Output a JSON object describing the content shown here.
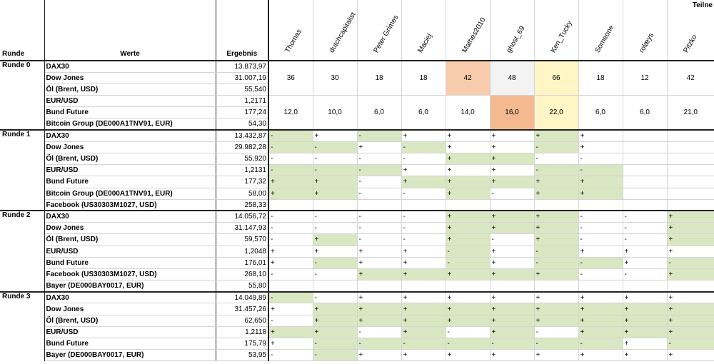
{
  "headers": {
    "runde": "Runde",
    "werte": "Werte",
    "ergebnis": "Ergebnis",
    "teilnehmer": "Teilne"
  },
  "participants": [
    "Thomas",
    "dutchcapitalist",
    "Peter Grimes",
    "Maciej",
    "Mathes2010",
    "ghost_69",
    "Ken_Tucky",
    "Someone",
    "rolæys",
    "Pitzko"
  ],
  "runde0": {
    "label": "Runde 0",
    "assets": [
      "DAX30",
      "Dow Jones",
      "Öl (Brent, USD)",
      "EUR/USD",
      "Bund Future",
      "Bitcoin Group (DE000A1TNV91, EUR)"
    ],
    "ergebnis": [
      "13.873,97",
      "31.007,19",
      "55,540",
      "1,2171",
      "177,24",
      "54,30"
    ],
    "totals": [
      "36",
      "30",
      "18",
      "18",
      "42",
      "48",
      "66",
      "18",
      "12",
      "42"
    ],
    "scores": [
      "12,0",
      "10,0",
      "6,0",
      "6,0",
      "14,0",
      "16,0",
      "22,0",
      "6,0",
      "6,0",
      "21,0"
    ],
    "highlight_colors": {
      "totals": [
        "",
        "",
        "",
        "",
        "#f8cbad",
        "#f3f3f3",
        "#fff5c5",
        "",
        "",
        ""
      ],
      "scores": [
        "",
        "",
        "",
        "",
        "",
        "#f4b98f",
        "#fff5c5",
        "",
        "",
        ""
      ]
    }
  },
  "runden": [
    {
      "label": "Runde 1",
      "rows": [
        {
          "asset": "DAX30",
          "ergebnis": "13.432,87",
          "marks": [
            "-",
            "+",
            "-",
            "+",
            "+",
            "+",
            "+",
            "+",
            "",
            ""
          ],
          "correct": [
            1,
            0,
            1,
            0,
            0,
            0,
            1,
            0,
            0,
            0
          ]
        },
        {
          "asset": "Dow Jones",
          "ergebnis": "29.982,28",
          "marks": [
            "-",
            "-",
            "+",
            "-",
            "+",
            "+",
            "-",
            "+",
            "",
            ""
          ],
          "correct": [
            1,
            1,
            0,
            1,
            0,
            0,
            1,
            0,
            0,
            0
          ]
        },
        {
          "asset": "Öl (Brent, USD)",
          "ergebnis": "55,920",
          "marks": [
            "-",
            "-",
            "-",
            "-",
            "+",
            "+",
            "-",
            "-",
            "",
            ""
          ],
          "correct": [
            0,
            0,
            0,
            0,
            1,
            1,
            0,
            0,
            0,
            0
          ]
        },
        {
          "asset": "EUR/USD",
          "ergebnis": "1,2131",
          "marks": [
            "-",
            "-",
            "-",
            "+",
            "+",
            "+",
            "-",
            "-",
            "",
            ""
          ],
          "correct": [
            1,
            1,
            1,
            0,
            0,
            0,
            1,
            1,
            0,
            0
          ]
        },
        {
          "asset": "Bund Future",
          "ergebnis": "177,32",
          "marks": [
            "+",
            "+",
            "-",
            "+",
            "+",
            "+",
            "+",
            "+",
            "",
            ""
          ],
          "correct": [
            1,
            1,
            0,
            1,
            1,
            1,
            1,
            1,
            0,
            0
          ]
        },
        {
          "asset": "Bitcoin Group (DE000A1TNV91, EUR)",
          "ergebnis": "58,00",
          "marks": [
            "+",
            "+",
            "-",
            "-",
            "+",
            "-",
            "+",
            "+",
            "",
            ""
          ],
          "correct": [
            1,
            1,
            0,
            0,
            1,
            0,
            1,
            1,
            0,
            0
          ]
        },
        {
          "asset": "Facebook (US30303M1027, USD)",
          "ergebnis": "258,33",
          "marks": [
            "",
            "",
            "",
            "",
            "",
            "",
            "",
            "",
            "",
            ""
          ],
          "correct": [
            0,
            0,
            0,
            0,
            0,
            0,
            0,
            0,
            0,
            0
          ]
        }
      ]
    },
    {
      "label": "Runde 2",
      "rows": [
        {
          "asset": "DAX30",
          "ergebnis": "14.056,72",
          "marks": [
            "-",
            "-",
            "-",
            "-",
            "+",
            "+",
            "+",
            "-",
            "-",
            "+"
          ],
          "correct": [
            0,
            0,
            0,
            0,
            1,
            1,
            1,
            0,
            0,
            1
          ]
        },
        {
          "asset": "Dow Jones",
          "ergebnis": "31.147,93",
          "marks": [
            "-",
            "-",
            "-",
            "-",
            "+",
            "+",
            "+",
            "-",
            "-",
            "+"
          ],
          "correct": [
            0,
            0,
            0,
            0,
            1,
            1,
            1,
            0,
            0,
            1
          ]
        },
        {
          "asset": "Öl (Brent, USD)",
          "ergebnis": "59,570",
          "marks": [
            "-",
            "+",
            "-",
            "-",
            "+",
            "-",
            "+",
            "-",
            "-",
            "+"
          ],
          "correct": [
            0,
            1,
            0,
            0,
            1,
            0,
            1,
            0,
            0,
            1
          ]
        },
        {
          "asset": "EUR/USD",
          "ergebnis": "1,2048",
          "marks": [
            "+",
            "+",
            "+",
            "+",
            "-",
            "+",
            "-",
            "+",
            "+",
            "+"
          ],
          "correct": [
            0,
            0,
            0,
            0,
            1,
            0,
            1,
            0,
            0,
            0
          ]
        },
        {
          "asset": "Bund Future",
          "ergebnis": "176,01",
          "marks": [
            "+",
            "-",
            "+",
            "+",
            "-",
            "+",
            "-",
            "-",
            "+",
            "-"
          ],
          "correct": [
            0,
            1,
            0,
            0,
            1,
            0,
            1,
            1,
            0,
            1
          ]
        },
        {
          "asset": "Facebook (US30303M1027, USD)",
          "ergebnis": "268,10",
          "marks": [
            "-",
            "-",
            "+",
            "+",
            "+",
            "+",
            "+",
            "-",
            "-",
            "+"
          ],
          "correct": [
            0,
            0,
            1,
            1,
            1,
            1,
            1,
            0,
            0,
            1
          ]
        },
        {
          "asset": "Bayer (DE000BAY0017, EUR)",
          "ergebnis": "55,80",
          "marks": [
            "",
            "",
            "",
            "",
            "",
            "",
            "",
            "",
            "",
            ""
          ],
          "correct": [
            0,
            0,
            0,
            0,
            0,
            0,
            0,
            0,
            0,
            0
          ]
        }
      ]
    },
    {
      "label": "Runde 3",
      "rows": [
        {
          "asset": "DAX30",
          "ergebnis": "14.049,89",
          "marks": [
            "-",
            "-",
            "+",
            "+",
            "+",
            "+",
            "+",
            "+",
            "+",
            "+"
          ],
          "correct": [
            1,
            0,
            0,
            0,
            0,
            0,
            0,
            0,
            0,
            0
          ]
        },
        {
          "asset": "Dow Jones",
          "ergebnis": "31.457,26",
          "marks": [
            "+",
            "+",
            "+",
            "+",
            "+",
            "+",
            "+",
            "+",
            "+",
            "+"
          ],
          "correct": [
            0,
            1,
            1,
            1,
            1,
            1,
            1,
            1,
            1,
            1
          ]
        },
        {
          "asset": "Öl (Brent, USD)",
          "ergebnis": "62,650",
          "marks": [
            "-",
            "+",
            "+",
            "+",
            "+",
            "+",
            "+",
            "+",
            "+",
            "+"
          ],
          "correct": [
            0,
            1,
            1,
            1,
            1,
            1,
            1,
            1,
            1,
            1
          ]
        },
        {
          "asset": "EUR/USD",
          "ergebnis": "1,2118",
          "marks": [
            "+",
            "+",
            "-",
            "+",
            "-",
            "+",
            "-",
            "+",
            "+",
            "+"
          ],
          "correct": [
            1,
            1,
            0,
            1,
            0,
            1,
            0,
            1,
            1,
            1
          ]
        },
        {
          "asset": "Bund Future",
          "ergebnis": "175,79",
          "marks": [
            "+",
            "-",
            "-",
            "-",
            "-",
            "-",
            "-",
            "-",
            "+",
            "-"
          ],
          "correct": [
            0,
            1,
            1,
            1,
            1,
            1,
            1,
            1,
            0,
            1
          ]
        },
        {
          "asset": "Bayer (DE000BAY0017, EUR)",
          "ergebnis": "53,95",
          "marks": [
            "-",
            "-",
            "+",
            "+",
            "+",
            "+",
            "+",
            "+",
            "+",
            "+"
          ],
          "correct": [
            0,
            1,
            0,
            0,
            0,
            0,
            0,
            0,
            0,
            0
          ]
        }
      ]
    }
  ]
}
